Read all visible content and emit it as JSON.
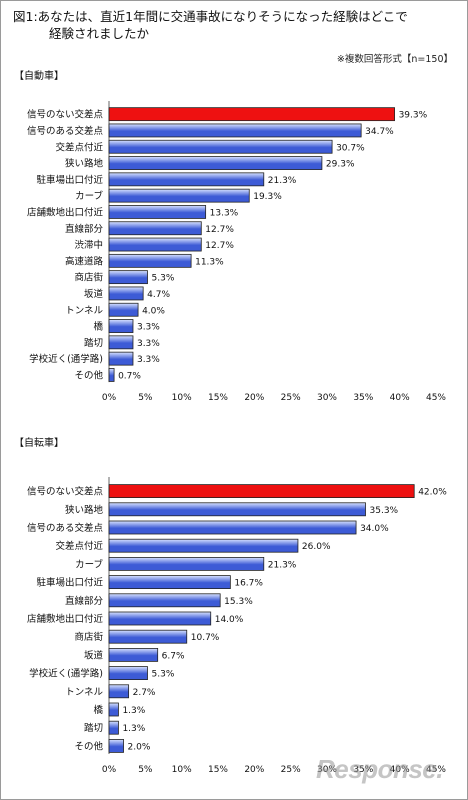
{
  "title_line1": "図1:あなたは、直近1年間に交通事故になりそうになった経験はどこで",
  "title_line2": "経験されましたか",
  "note": "※複数回答形式【n=150】",
  "watermark": "Response.",
  "colors": {
    "highlight": "#ee1111",
    "bar": "#3d5bd6",
    "bar_light": "#d8e2ff",
    "border": "#222222"
  },
  "chart_data": [
    {
      "type": "bar",
      "orientation": "horizontal",
      "section_label": "【自動車】",
      "categories": [
        "信号のない交差点",
        "信号のある交差点",
        "交差点付近",
        "狭い路地",
        "駐車場出口付近",
        "カーブ",
        "店舗敷地出口付近",
        "直線部分",
        "渋滞中",
        "高速道路",
        "商店街",
        "坂道",
        "トンネル",
        "橋",
        "踏切",
        "学校近く(通学路)",
        "その他"
      ],
      "values": [
        39.3,
        34.7,
        30.7,
        29.3,
        21.3,
        19.3,
        13.3,
        12.7,
        12.7,
        11.3,
        5.3,
        4.7,
        4.0,
        3.3,
        3.3,
        3.3,
        0.7
      ],
      "value_labels": [
        "39.3%",
        "34.7%",
        "30.7%",
        "29.3%",
        "21.3%",
        "19.3%",
        "13.3%",
        "12.7%",
        "12.7%",
        "11.3%",
        "5.3%",
        "4.7%",
        "4.0%",
        "3.3%",
        "3.3%",
        "3.3%",
        "0.7%"
      ],
      "highlight_index": 0,
      "xlim": [
        0,
        45
      ],
      "x_ticks": [
        "0%",
        "5%",
        "10%",
        "15%",
        "20%",
        "25%",
        "30%",
        "35%",
        "40%",
        "45%"
      ],
      "grid": false
    },
    {
      "type": "bar",
      "orientation": "horizontal",
      "section_label": "【自転車】",
      "categories": [
        "信号のない交差点",
        "狭い路地",
        "信号のある交差点",
        "交差点付近",
        "カーブ",
        "駐車場出口付近",
        "直線部分",
        "店舗敷地出口付近",
        "商店街",
        "坂道",
        "学校近く(通学路)",
        "トンネル",
        "橋",
        "踏切",
        "その他"
      ],
      "values": [
        42.0,
        35.3,
        34.0,
        26.0,
        21.3,
        16.7,
        15.3,
        14.0,
        10.7,
        6.7,
        5.3,
        2.7,
        1.3,
        1.3,
        2.0
      ],
      "value_labels": [
        "42.0%",
        "35.3%",
        "34.0%",
        "26.0%",
        "21.3%",
        "16.7%",
        "15.3%",
        "14.0%",
        "10.7%",
        "6.7%",
        "5.3%",
        "2.7%",
        "1.3%",
        "1.3%",
        "2.0%"
      ],
      "highlight_index": 0,
      "xlim": [
        0,
        45
      ],
      "x_ticks": [
        "0%",
        "5%",
        "10%",
        "15%",
        "20%",
        "25%",
        "30%",
        "35%",
        "40%",
        "45%"
      ],
      "grid": false
    }
  ]
}
